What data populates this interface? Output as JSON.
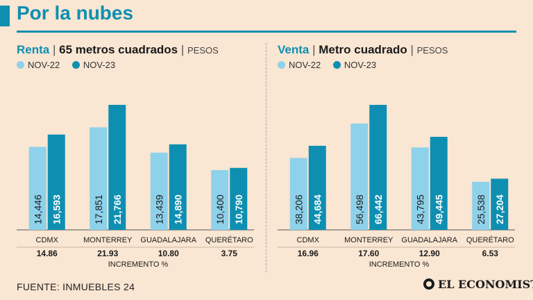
{
  "header": {
    "title": "Por la nubes"
  },
  "legend": {
    "nov22": "NOV-22",
    "nov23": "NOV-23"
  },
  "colors": {
    "nov22": "#8ed1ea",
    "nov23": "#0e8fb1",
    "accent": "#0e8fb1",
    "background": "#f9e6d3"
  },
  "chart_data": [
    {
      "type": "bar",
      "title_accent": "Renta",
      "title_main": "65 metros cuadrados",
      "unit": "PESOS",
      "categories": [
        "CDMX",
        "MONTERREY",
        "GUADALAJARA",
        "QUERÉTARO"
      ],
      "series": [
        {
          "name": "NOV-22",
          "values": [
            14446,
            17851,
            13439,
            10400
          ],
          "labels": [
            "14,446",
            "17,851",
            "13,439",
            "10,400"
          ]
        },
        {
          "name": "NOV-23",
          "values": [
            16593,
            21766,
            14890,
            10790
          ],
          "labels": [
            "16,593",
            "21,766",
            "14,890",
            "10,790"
          ]
        }
      ],
      "increments": [
        "14.86",
        "21.93",
        "10.80",
        "3.75"
      ],
      "increment_label": "INCREMENTO %",
      "ylim": [
        0,
        21766
      ]
    },
    {
      "type": "bar",
      "title_accent": "Venta",
      "title_main": "Metro cuadrado",
      "unit": "PESOS",
      "categories": [
        "CDMX",
        "MONTERREY",
        "GUADALAJARA",
        "QUERÉTARO"
      ],
      "series": [
        {
          "name": "NOV-22",
          "values": [
            38206,
            56498,
            43795,
            25538
          ],
          "labels": [
            "38,206",
            "56,498",
            "43,795",
            "25,538"
          ]
        },
        {
          "name": "NOV-23",
          "values": [
            44684,
            66442,
            49445,
            27204
          ],
          "labels": [
            "44,684",
            "66,442",
            "49,445",
            "27,204"
          ]
        }
      ],
      "increments": [
        "16.96",
        "17.60",
        "12.90",
        "6.53"
      ],
      "increment_label": "INCREMENTO %",
      "ylim": [
        0,
        66442
      ]
    }
  ],
  "footer": {
    "source": "FUENTE: INMUEBLES 24",
    "logo": "EL ECONOMISTA"
  }
}
